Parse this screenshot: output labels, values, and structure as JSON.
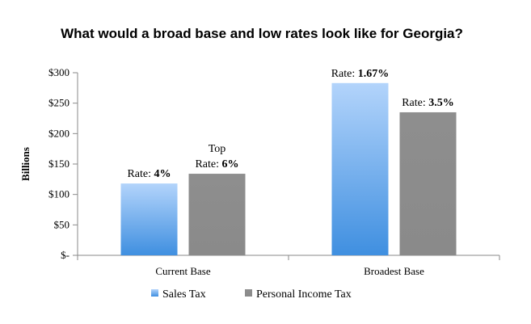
{
  "chart_data": {
    "type": "bar",
    "title": "What would a broad base and low rates look like for Georgia?",
    "xlabel": "",
    "ylabel": "Billions",
    "ylim": [
      0,
      300
    ],
    "yticks": [
      0,
      50,
      100,
      150,
      200,
      250,
      300
    ],
    "ytick_labels": [
      "$-",
      "$50",
      "$100",
      "$150",
      "$200",
      "$250",
      "$300"
    ],
    "categories": [
      "Current Base",
      "Broadest Base"
    ],
    "series": [
      {
        "name": "Sales Tax",
        "color": "#7fb3ee",
        "values": [
          118,
          283
        ],
        "labels": [
          {
            "prefix": "Rate: ",
            "value": "4%"
          },
          {
            "prefix": "Rate: ",
            "value": "1.67%"
          }
        ]
      },
      {
        "name": "Personal Income Tax",
        "color": "#8c8c8c",
        "values": [
          134,
          235
        ],
        "labels": [
          {
            "top": "Top",
            "prefix": "Rate: ",
            "value": "6%"
          },
          {
            "prefix": "Rate: ",
            "value": "3.5%"
          }
        ]
      }
    ],
    "grid": false,
    "legend": "bottom"
  }
}
